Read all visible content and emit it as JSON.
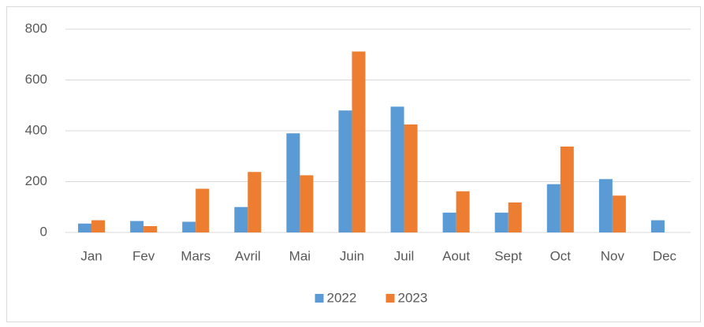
{
  "chart_data": {
    "type": "bar",
    "categories": [
      "Jan",
      "Fev",
      "Mars",
      "Avril",
      "Mai",
      "Juin",
      "Juil",
      "Aout",
      "Sept",
      "Oct",
      "Nov",
      "Dec"
    ],
    "series": [
      {
        "name": "2022",
        "color": "#5b9bd5",
        "values": [
          35,
          45,
          42,
          100,
          390,
          480,
          495,
          78,
          78,
          190,
          210,
          48
        ]
      },
      {
        "name": "2023",
        "color": "#ed7d31",
        "values": [
          48,
          25,
          172,
          238,
          225,
          712,
          425,
          162,
          118,
          338,
          145,
          null
        ]
      }
    ],
    "ylim": [
      0,
      800
    ],
    "yticks": [
      0,
      200,
      400,
      600,
      800
    ],
    "grid": true,
    "legend": "bottom"
  }
}
